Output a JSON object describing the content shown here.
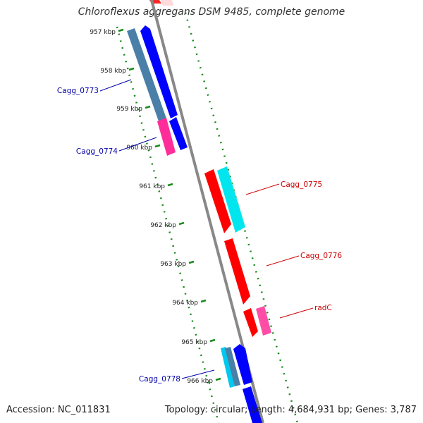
{
  "title": "Chloroflexus aggregans DSM 9485, complete genome",
  "accession": "Accession: NC_011831",
  "summary": "Topology: circular; Length: 4,684,931 bp; Genes: 3,787",
  "colors": {
    "backbone": "#888888",
    "tick": "#1a8a1a",
    "forward_label": "#cc0000",
    "reverse_label": "#0000aa",
    "red": "#ff0000",
    "blue": "#0000ff",
    "steel": "#4a7fa8",
    "magenta": "#ff2d9a",
    "cyan": "#00e5ee",
    "pink": "#ff4da6"
  },
  "scale_ticks": [
    "957 kbp",
    "958 kbp",
    "959 kbp",
    "960 kbp",
    "961 kbp",
    "962 kbp",
    "963 kbp",
    "964 kbp",
    "965 kbp",
    "966 kbp"
  ],
  "gene_labels": [
    {
      "name": "Cagg_0773",
      "strand": "reverse"
    },
    {
      "name": "Cagg_0774",
      "strand": "reverse"
    },
    {
      "name": "Cagg_0775",
      "strand": "forward"
    },
    {
      "name": "Cagg_0776",
      "strand": "forward"
    },
    {
      "name": "radC",
      "strand": "forward"
    },
    {
      "name": "Cagg_0778",
      "strand": "reverse"
    }
  ]
}
